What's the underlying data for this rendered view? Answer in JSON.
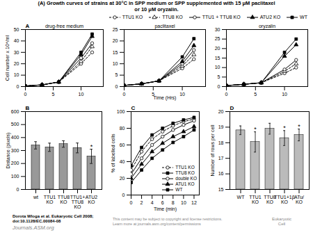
{
  "title": "(A) Growth curves of strains at 30°C in SPP medium or SPP supplemented with 15 μM paclitaxel\nor 10 μM oryzalin.",
  "annotations": [
    "Dorota Wloga et al. Eukaryotic Cell 2008;",
    "doi:10.1128/EC.00084-08",
    "Journals.ASM.org",
    "This content may be subject to copyright and license restrictions.\nLearn more at journals.asm.org/content/permissions",
    "Eukaryotic\nCell"
  ],
  "chart_data": [
    {
      "type": "line",
      "annotations": [
        {
          "text": "A"
        },
        {
          "text": "drug-free medium"
        }
      ],
      "ylabel": "Cell number x 10⁴/ml",
      "x": [
        0,
        3,
        6,
        10,
        12
      ],
      "xlim": [
        0,
        14
      ],
      "xticks": [
        0,
        5,
        10
      ],
      "ylim": [
        0,
        50
      ],
      "yticks": [
        0,
        10,
        20,
        30,
        40,
        50
      ],
      "series": [
        {
          "name": "TTU1 KO",
          "color": "black",
          "marker": "circle-open",
          "line_style": "dashed",
          "values": [
            0.5,
            1.5,
            4,
            20,
            30
          ]
        },
        {
          "name": "TTU8 KO",
          "color": "black",
          "marker": "triangle-open",
          "line_style": "dashed",
          "values": [
            0.5,
            1.5,
            4,
            22,
            35
          ]
        },
        {
          "name": "TTU1 + TTU8 KO",
          "color": "black",
          "marker": "circle-open",
          "line_style": "solid",
          "values": [
            0.5,
            1.5,
            4,
            25,
            38
          ]
        },
        {
          "name": "ATU2 KO",
          "color": "black",
          "marker": "triangle",
          "line_style": "solid",
          "values": [
            0.5,
            1.5,
            4,
            28,
            44
          ]
        },
        {
          "name": "WT",
          "color": "black",
          "marker": "square",
          "line_style": "solid",
          "values": [
            0.5,
            1.5,
            4,
            30,
            46
          ]
        }
      ]
    },
    {
      "type": "line",
      "annotations": [
        {
          "text": "paclitaxel"
        }
      ],
      "xlabel": "Time (Hrs)",
      "x": [
        0,
        3,
        6,
        10,
        12
      ],
      "xlim": [
        0,
        14
      ],
      "xticks": [
        0,
        5,
        10
      ],
      "ylim": [
        0,
        25
      ],
      "yticks": [
        0,
        5,
        10,
        15,
        20,
        25
      ],
      "series": [
        {
          "name": "TTU1 KO",
          "color": "black",
          "marker": "circle-open",
          "line_style": "dashed",
          "values": [
            0.5,
            1.2,
            2.5,
            8,
            12
          ]
        },
        {
          "name": "TTU8 KO",
          "color": "black",
          "marker": "triangle-open",
          "line_style": "dashed",
          "values": [
            0.5,
            1.2,
            2.5,
            9,
            14
          ]
        },
        {
          "name": "TTU1 + TTU8 KO",
          "color": "black",
          "marker": "circle-open",
          "line_style": "solid",
          "values": [
            0.5,
            1.2,
            2.5,
            10,
            16
          ]
        },
        {
          "name": "ATU2 KO",
          "color": "black",
          "marker": "triangle",
          "line_style": "solid",
          "values": [
            0.5,
            1.2,
            2.5,
            11,
            18
          ]
        },
        {
          "name": "WT",
          "color": "black",
          "marker": "square",
          "line_style": "solid",
          "values": [
            0.5,
            1.2,
            2.5,
            13,
            21
          ]
        }
      ]
    },
    {
      "type": "line",
      "annotations": [
        {
          "text": "oryzalin"
        }
      ],
      "legend": "upper right",
      "x": [
        0,
        3,
        6,
        10,
        12
      ],
      "xlim": [
        0,
        14
      ],
      "xticks": [
        0,
        5,
        10
      ],
      "ylim": [
        0,
        30
      ],
      "yticks": [
        0,
        5,
        10,
        15,
        20,
        25,
        30
      ],
      "series": [
        {
          "name": "TTU1 KO",
          "color": "black",
          "marker": "circle-open",
          "line_style": "dashed",
          "values": [
            0.5,
            1.2,
            2,
            7,
            10
          ]
        },
        {
          "name": "TTU8 KO",
          "color": "black",
          "marker": "triangle-open",
          "line_style": "dashed",
          "values": [
            0.5,
            1.2,
            2,
            8,
            12
          ]
        },
        {
          "name": "TTU1 + TTU8 KO",
          "color": "black",
          "marker": "circle-open",
          "line_style": "solid",
          "values": [
            0.5,
            1.2,
            2,
            9,
            14
          ]
        },
        {
          "name": "ATU2 KO",
          "color": "black",
          "marker": "triangle",
          "line_style": "solid",
          "values": [
            0.5,
            1.2,
            2,
            16,
            22
          ]
        },
        {
          "name": "WT",
          "color": "black",
          "marker": "square",
          "line_style": "solid",
          "values": [
            0.5,
            1.2,
            2,
            18,
            25
          ]
        }
      ]
    },
    {
      "type": "bar",
      "annotations": [
        {
          "text": "B"
        },
        {
          "text": "*",
          "category": "ATU2\nKO"
        }
      ],
      "ylabel": "Distance (pixels)",
      "categories": [
        "wt",
        "TTU1\nKO",
        "TTU8\nKO",
        "TTU1+\nTTU8\nKO",
        "ATU2\nKO"
      ],
      "values": [
        340,
        325,
        350,
        320,
        255
      ],
      "errors": [
        28,
        32,
        25,
        38,
        55
      ],
      "color": "#999999",
      "ylim": [
        0,
        600
      ],
      "yticks": [
        0,
        100,
        200,
        300,
        400,
        500,
        600
      ]
    },
    {
      "type": "line",
      "annotations": [
        {
          "text": "C"
        }
      ],
      "legend": "lower right",
      "xlabel": "Time (min)",
      "ylabel": "% of labelled cells",
      "x": [
        0,
        2,
        4,
        6,
        8,
        10,
        12
      ],
      "xlim": [
        0,
        13
      ],
      "xticks": [
        0,
        2,
        4,
        6,
        8,
        10,
        12
      ],
      "ylim": [
        0,
        100
      ],
      "yticks": [
        0,
        20,
        40,
        60,
        80,
        100
      ],
      "series": [
        {
          "name": "TTU1 KO",
          "color": "black",
          "marker": "circle-open",
          "line_style": "dashed",
          "values": [
            30,
            52,
            67,
            76,
            83,
            88,
            91
          ]
        },
        {
          "name": "TTU8 KO",
          "color": "black",
          "marker": "square",
          "line_style": "solid",
          "values": [
            35,
            57,
            72,
            80,
            86,
            90,
            93
          ]
        },
        {
          "name": "double KO",
          "color": "black",
          "marker": "circle-open",
          "line_style": "solid",
          "values": [
            25,
            44,
            60,
            70,
            78,
            84,
            89
          ]
        },
        {
          "name": "ATU1 KO",
          "color": "black",
          "marker": "triangle",
          "line_style": "solid",
          "values": [
            20,
            37,
            52,
            62,
            70,
            76,
            82
          ]
        },
        {
          "name": "WT",
          "color": "black",
          "marker": "square",
          "line_style": "solid",
          "values": [
            15,
            30,
            44,
            54,
            63,
            70,
            78
          ]
        }
      ]
    },
    {
      "type": "bar",
      "annotations": [
        {
          "text": "D"
        },
        {
          "text": "*",
          "category": "TTU1\nKO"
        },
        {
          "text": "*",
          "category": "TTU1+1β\nKO"
        },
        {
          "text": "*",
          "category": "ATu/\nKO"
        }
      ],
      "ylabel": "Number of rows per cell",
      "categories": [
        "WT",
        "TTU1\nKO",
        "TTU8\nKO",
        "TTU1+1β\nKO",
        "ATu/\nKO"
      ],
      "values": [
        18.8,
        18.05,
        18.9,
        18.3,
        18.5
      ],
      "errors": [
        0.28,
        0.65,
        0.35,
        0.48,
        0.38
      ],
      "color": "#bbbbbb",
      "ylim": [
        15,
        20
      ],
      "yticks": [
        15,
        16,
        17,
        18,
        19,
        20
      ]
    }
  ]
}
